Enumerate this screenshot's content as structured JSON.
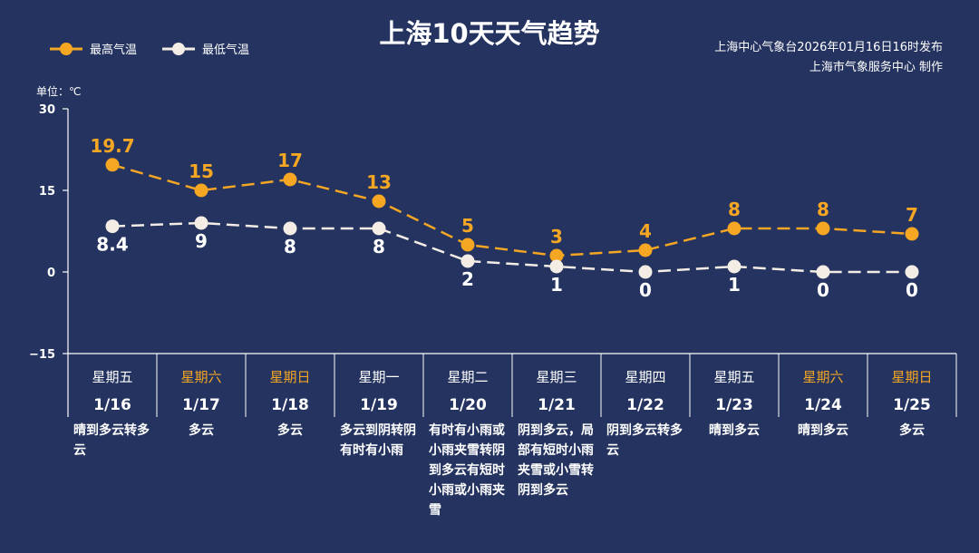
{
  "title": "上海10天天气趋势",
  "credit": {
    "line1": "上海中心气象台2026年01月16日16时发布",
    "line2": "上海市气象服务中心 制作"
  },
  "unit_label": "单位：℃",
  "colors": {
    "background": "#24335f",
    "high": "#f5a623",
    "low": "#f3ede6",
    "weekend": "#f5a623"
  },
  "chart_data": {
    "type": "line",
    "ylim": [
      -15,
      30
    ],
    "yticks": [
      "30",
      "15",
      "0",
      "-15"
    ],
    "categories": [
      "1/16",
      "1/17",
      "1/18",
      "1/19",
      "1/20",
      "1/21",
      "1/22",
      "1/23",
      "1/24",
      "1/25"
    ],
    "weekdays": [
      "星期五",
      "星期六",
      "星期日",
      "星期一",
      "星期二",
      "星期三",
      "星期四",
      "星期五",
      "星期六",
      "星期日"
    ],
    "weekend": [
      false,
      true,
      true,
      false,
      false,
      false,
      false,
      false,
      true,
      true
    ],
    "weather": [
      "晴到多云转多云",
      "多云",
      "多云",
      "多云到阴转阴有时有小雨",
      "有时有小雨或小雨夹雪转阴到多云有短时小雨或小雨夹雪",
      "阴到多云，局部有短时小雨夹雪或小雪转阴到多云",
      "阴到多云转多云",
      "晴到多云",
      "晴到多云",
      "多云"
    ],
    "series": [
      {
        "name": "最高气温",
        "values": [
          19.7,
          15,
          17,
          13,
          5,
          3,
          4,
          8,
          8,
          7
        ],
        "labels": [
          "19.7",
          "15",
          "17",
          "13",
          "5",
          "3",
          "4",
          "8",
          "8",
          "7"
        ]
      },
      {
        "name": "最低气温",
        "values": [
          8.4,
          9,
          8,
          8,
          2,
          1,
          0,
          1,
          0,
          0
        ],
        "labels": [
          "8.4",
          "9",
          "8",
          "8",
          "2",
          "1",
          "0",
          "1",
          "0",
          "0"
        ]
      }
    ],
    "grid": false,
    "legend": "top-left"
  }
}
